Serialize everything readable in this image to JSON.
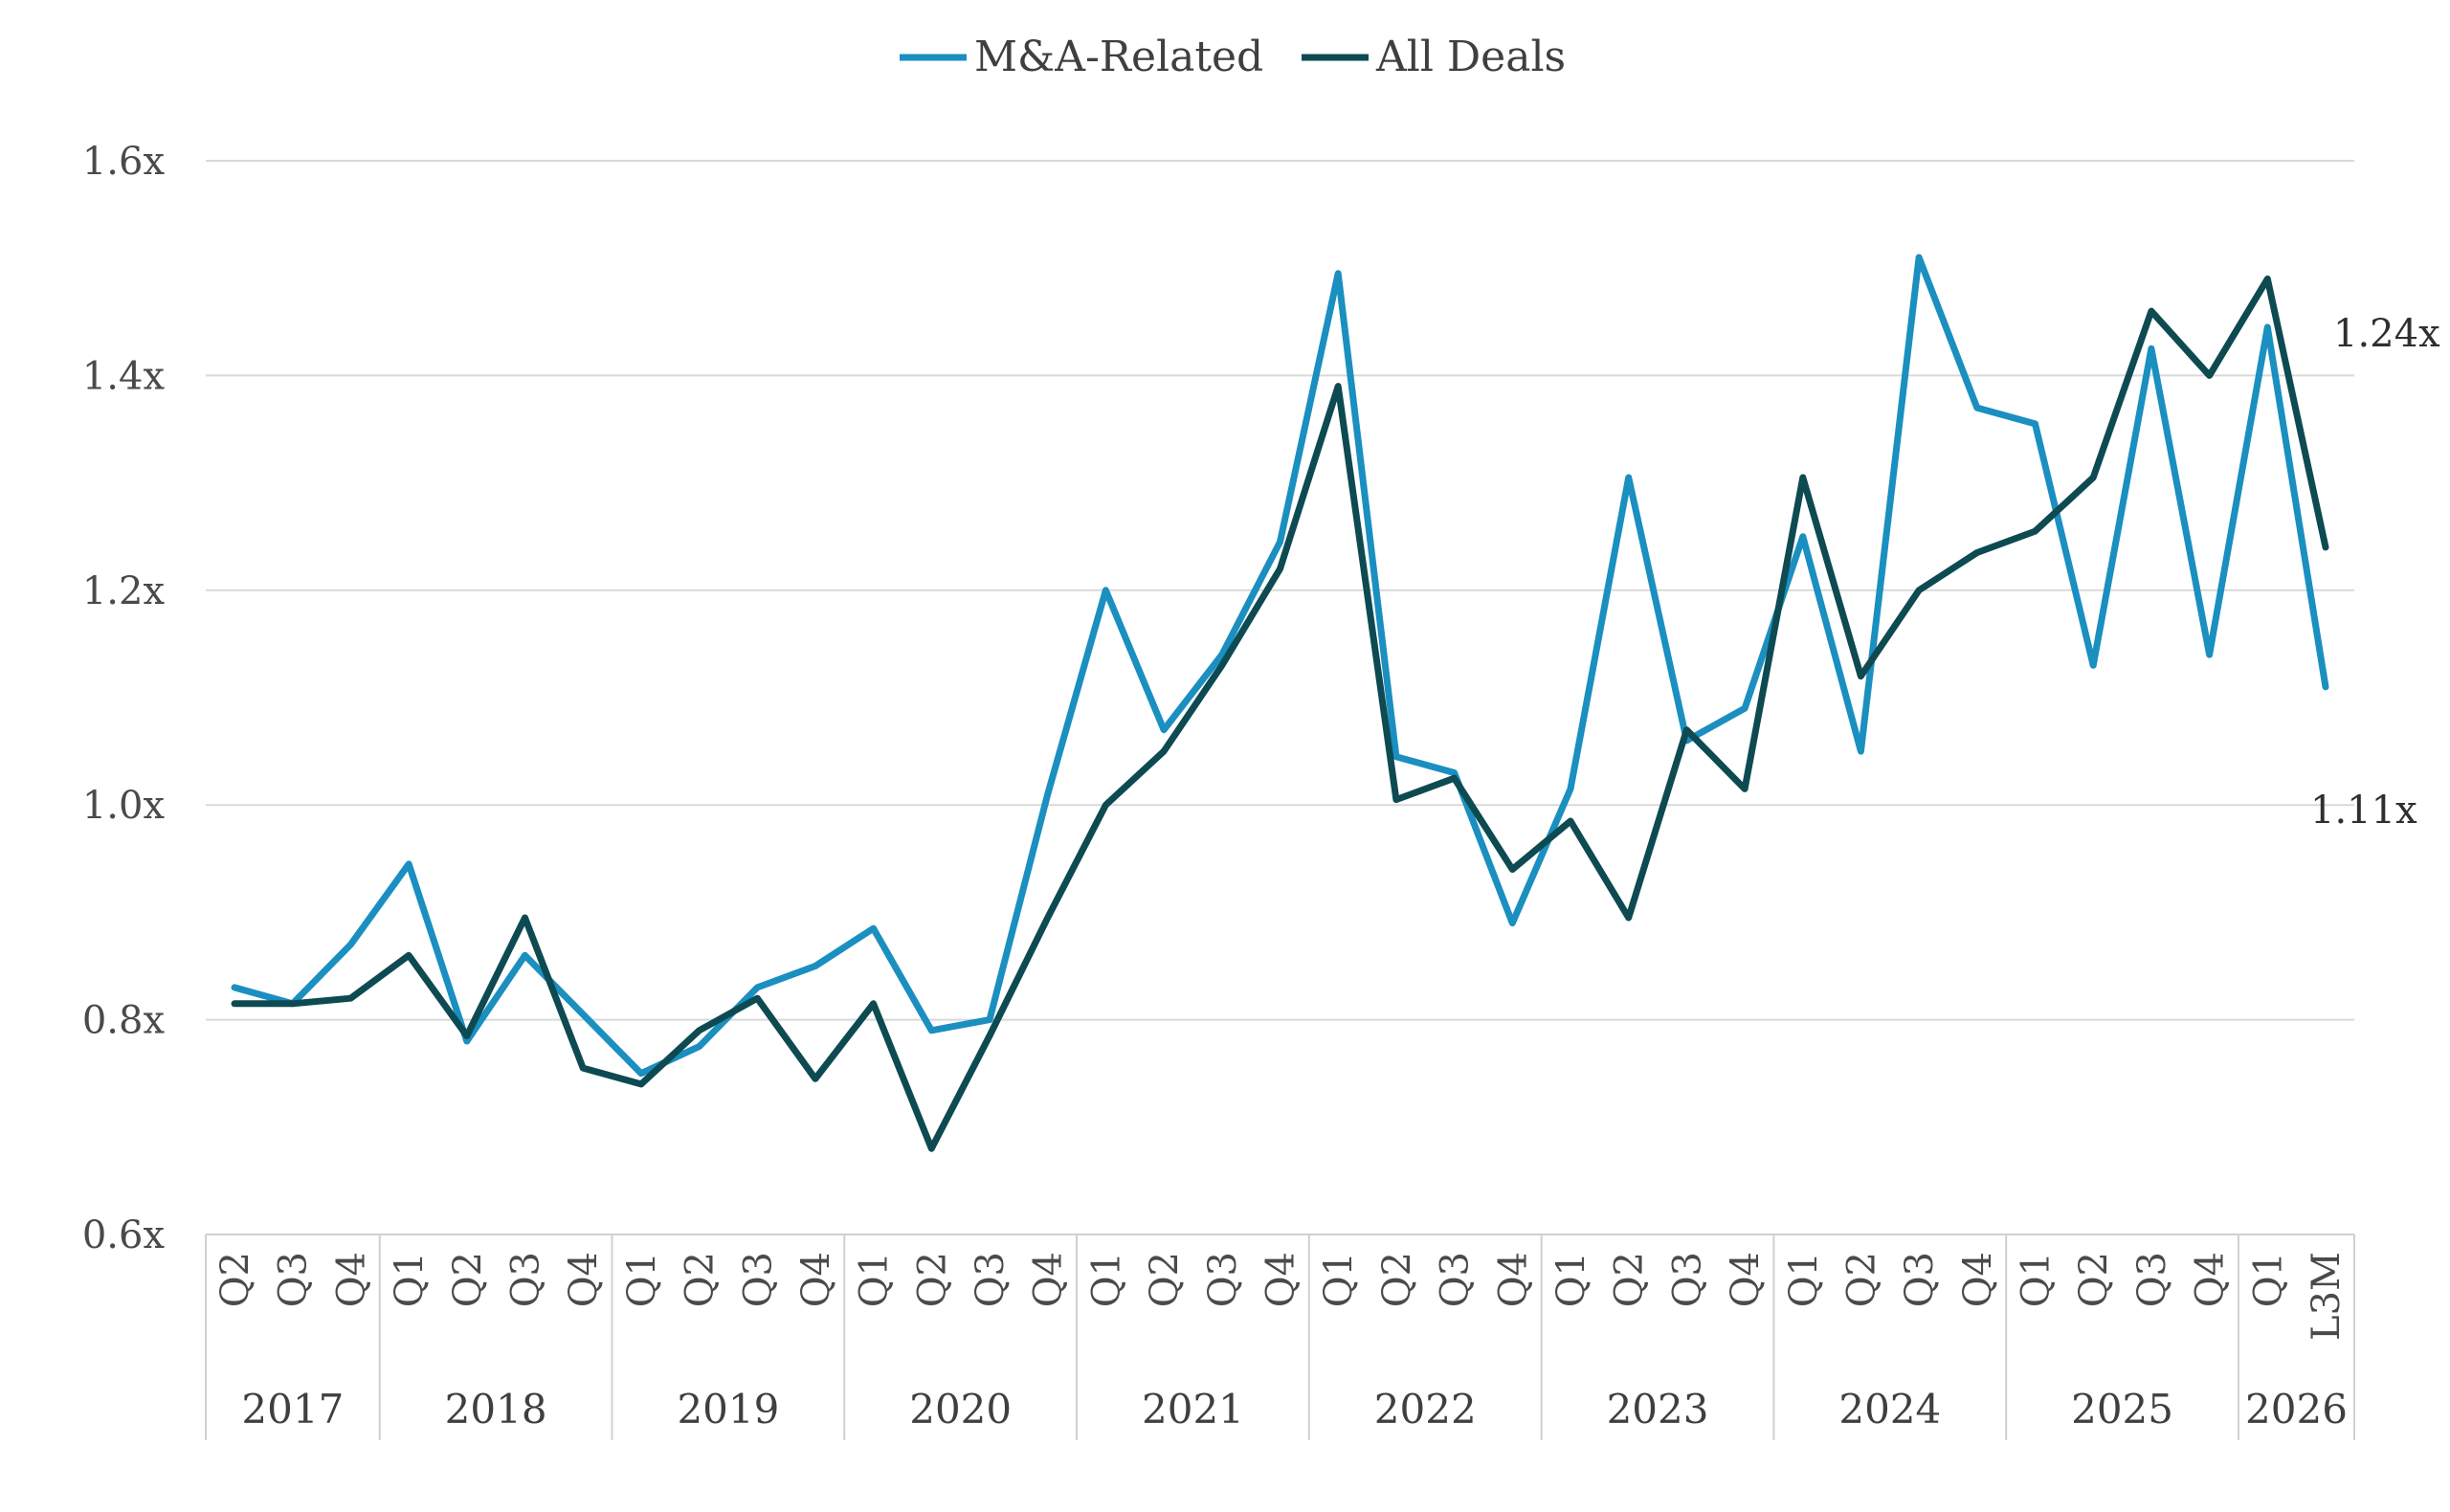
{
  "chart_data": {
    "type": "line",
    "title": "",
    "xlabel": "",
    "ylabel": "",
    "ylim": [
      0.6,
      1.6
    ],
    "y_ticks": [
      "0.6x",
      "0.8x",
      "1.0x",
      "1.2x",
      "1.4x",
      "1.6x"
    ],
    "grid": true,
    "legend_position": "top-center",
    "categories": [
      "Q2",
      "Q3",
      "Q4",
      "Q1",
      "Q2",
      "Q3",
      "Q4",
      "Q1",
      "Q2",
      "Q3",
      "Q4",
      "Q1",
      "Q2",
      "Q3",
      "Q4",
      "Q1",
      "Q2",
      "Q3",
      "Q4",
      "Q1",
      "Q2",
      "Q3",
      "Q4",
      "Q1",
      "Q2",
      "Q3",
      "Q4",
      "Q1",
      "Q2",
      "Q3",
      "Q4",
      "Q1",
      "Q2",
      "Q3",
      "Q4",
      "Q1",
      "L3M"
    ],
    "year_groups": [
      {
        "year": "2017",
        "count": 3
      },
      {
        "year": "2018",
        "count": 4
      },
      {
        "year": "2019",
        "count": 4
      },
      {
        "year": "2020",
        "count": 4
      },
      {
        "year": "2021",
        "count": 4
      },
      {
        "year": "2022",
        "count": 4
      },
      {
        "year": "2023",
        "count": 4
      },
      {
        "year": "2024",
        "count": 4
      },
      {
        "year": "2025",
        "count": 4
      },
      {
        "year": "2026",
        "count": 2
      }
    ],
    "series": [
      {
        "name": "M&A-Related",
        "color": "#1a8fc0",
        "values": [
          0.83,
          0.815,
          0.87,
          0.945,
          0.78,
          0.86,
          0.805,
          0.75,
          0.775,
          0.83,
          0.85,
          0.885,
          0.79,
          0.8,
          1.01,
          1.2,
          1.07,
          1.14,
          1.245,
          1.495,
          1.045,
          1.03,
          0.89,
          1.015,
          1.305,
          1.06,
          1.09,
          1.25,
          1.05,
          1.51,
          1.37,
          1.355,
          1.13,
          1.425,
          1.14,
          1.445,
          1.11
        ],
        "end_label": "1.11x"
      },
      {
        "name": "All Deals",
        "color": "#0d4a52",
        "values": [
          0.815,
          0.815,
          0.82,
          0.86,
          0.785,
          0.895,
          0.755,
          0.74,
          0.79,
          0.82,
          0.745,
          0.815,
          0.68,
          0.785,
          0.895,
          1.0,
          1.05,
          1.13,
          1.22,
          1.39,
          1.005,
          1.025,
          0.94,
          0.985,
          0.895,
          1.07,
          1.015,
          1.305,
          1.12,
          1.2,
          1.235,
          1.255,
          1.305,
          1.46,
          1.4,
          1.49,
          1.24
        ],
        "end_label": "1.24x"
      }
    ]
  }
}
